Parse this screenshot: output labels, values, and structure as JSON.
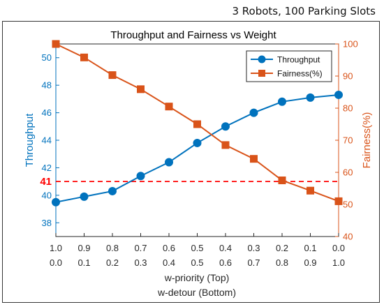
{
  "caption": "3 Robots, 100 Parking Slots",
  "chart_data": {
    "type": "line",
    "title": "Throughput and Fairness vs Weight",
    "x_top_labels": [
      "1.0",
      "0.9",
      "0.8",
      "0.7",
      "0.6",
      "0.5",
      "0.4",
      "0.3",
      "0.2",
      "0.1",
      "0.0"
    ],
    "x_bottom_labels": [
      "0.0",
      "0.1",
      "0.2",
      "0.3",
      "0.4",
      "0.5",
      "0.6",
      "0.7",
      "0.8",
      "0.9",
      "1.0"
    ],
    "xlabel_line1": "w-priority (Top)",
    "xlabel_line2": "w-detour (Bottom)",
    "ylabel_left": "Throughput",
    "ylabel_right": "Fairness(%)",
    "ylim_left": [
      37,
      51
    ],
    "yticks_left": [
      38,
      40,
      42,
      44,
      46,
      48,
      50
    ],
    "ylim_right": [
      40,
      100
    ],
    "yticks_right": [
      40,
      50,
      60,
      70,
      80,
      90,
      100
    ],
    "series": [
      {
        "name": "Throughput",
        "axis": "left",
        "color": "#0072BD",
        "marker": "circle",
        "values": [
          39.5,
          39.9,
          40.3,
          41.4,
          42.4,
          43.8,
          45.0,
          46.0,
          46.8,
          47.1,
          47.3
        ]
      },
      {
        "name": "Fairness(%)",
        "axis": "right",
        "color": "#D95319",
        "marker": "square",
        "values": [
          100,
          95.8,
          90.3,
          85.9,
          80.5,
          75.0,
          68.5,
          64.2,
          57.5,
          54.3,
          51.0
        ]
      }
    ],
    "reference_line": {
      "value": 41,
      "label": "41",
      "axis": "left",
      "color": "#FF0000",
      "style": "dashed"
    },
    "legend": {
      "position": "top-right"
    },
    "grid": false
  }
}
